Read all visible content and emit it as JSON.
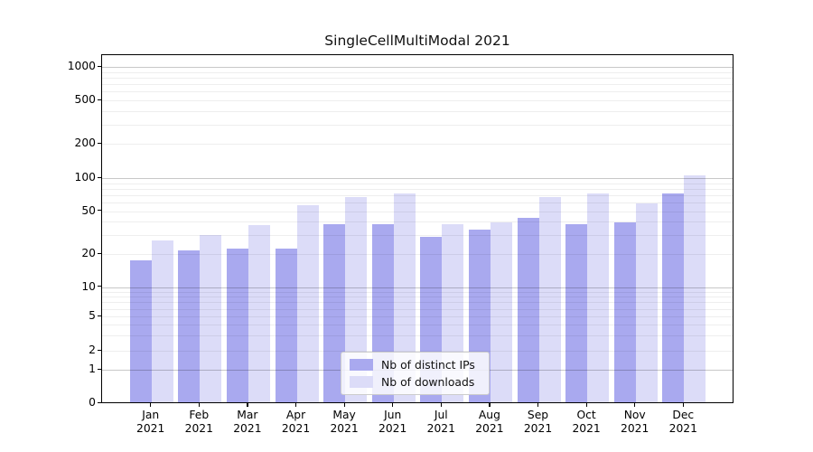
{
  "title": "SingleCellMultiModal 2021",
  "legend": {
    "entries": [
      {
        "label": "Nb of distinct IPs",
        "color": "#a9a9ef"
      },
      {
        "label": "Nb of downloads",
        "color": "#dcdcf8"
      }
    ]
  },
  "chart_data": {
    "type": "bar",
    "title": "SingleCellMultiModal 2021",
    "categories": [
      "Jan 2021",
      "Feb 2021",
      "Mar 2021",
      "Apr 2021",
      "May 2021",
      "Jun 2021",
      "Jul 2021",
      "Aug 2021",
      "Sep 2021",
      "Oct 2021",
      "Nov 2021",
      "Dec 2021"
    ],
    "month_labels": [
      "Jan",
      "Feb",
      "Mar",
      "Apr",
      "May",
      "Jun",
      "Jul",
      "Aug",
      "Sep",
      "Oct",
      "Nov",
      "Dec"
    ],
    "year_label": "2021",
    "series": [
      {
        "name": "Nb of distinct IPs",
        "color": "#a9a9ef",
        "values": [
          17,
          21,
          22,
          22,
          37,
          37,
          28,
          33,
          42,
          37,
          38,
          71
        ]
      },
      {
        "name": "Nb of downloads",
        "color": "#dcdcf8",
        "values": [
          26,
          29,
          36,
          55,
          65,
          70,
          37,
          38,
          65,
          71,
          57,
          102
        ]
      }
    ],
    "xlabel": "",
    "ylabel": "",
    "yscale": "symlog",
    "y_tick_values": [
      0,
      1,
      2,
      5,
      10,
      20,
      50,
      100,
      200,
      500,
      1000
    ],
    "y_tick_labels": [
      "0",
      "1",
      "2",
      "5",
      "10",
      "20",
      "50",
      "100",
      "200",
      "500",
      "1000"
    ],
    "ylim": [
      0,
      1300
    ],
    "grid": true,
    "legend_position": "lower center inside"
  },
  "colors": {
    "series_ips": "#a9a9ef",
    "series_downloads": "#dcdcf8",
    "grid_major": "#c8c8c8",
    "grid_minor": "#ededed",
    "axis": "#000000",
    "background": "#ffffff"
  }
}
